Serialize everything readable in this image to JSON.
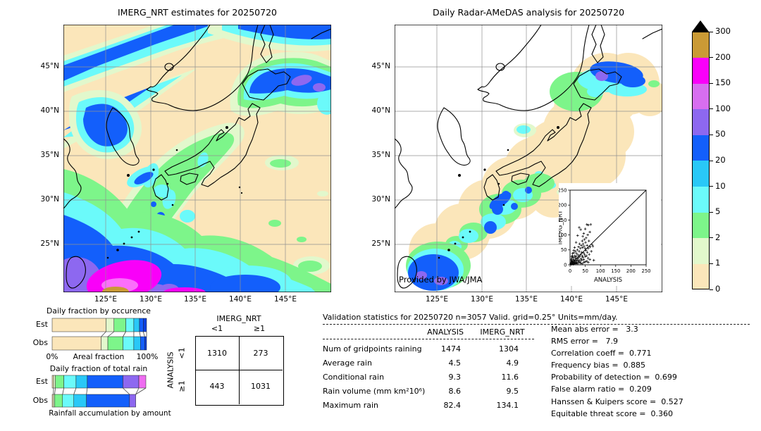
{
  "chart_data": [
    {
      "type": "heatmap",
      "title": "IMERG_NRT estimates for 20250720",
      "x_ticks": [
        "125°E",
        "130°E",
        "135°E",
        "140°E",
        "145°E"
      ],
      "y_ticks": [
        "45°N",
        "40°N",
        "35°N",
        "30°N",
        "25°N"
      ],
      "units": "mm/day",
      "levels": [
        0,
        1,
        2,
        5,
        10,
        20,
        50,
        100,
        150,
        200,
        300
      ],
      "level_colors": [
        "#fbe6ba",
        "#e2f8cc",
        "#7df58a",
        "#6bfafa",
        "#29c8f7",
        "#135ffb",
        "#8d68f0",
        "#d76ef0",
        "#f900f9",
        "#ca9a35"
      ],
      "over_color": "#000000",
      "description": "Satellite daily rainfall estimate over Japan region: heavy NE-SW rain bands in the northwest, heavy rain over Hokkaido, and a tropical system southwest of Okinawa with embedded 150-300 mm maxima."
    },
    {
      "type": "heatmap",
      "title": "Daily Radar-AMeDAS analysis for 20250720",
      "x_ticks": [
        "125°E",
        "130°E",
        "135°E",
        "140°E",
        "145°E"
      ],
      "y_ticks": [
        "45°N",
        "40°N",
        "35°N",
        "30°N",
        "25°N"
      ],
      "units": "mm/day",
      "levels": [
        0,
        1,
        2,
        5,
        10,
        20,
        50,
        100,
        150,
        200,
        300
      ],
      "level_colors": [
        "#fbe6ba",
        "#e2f8cc",
        "#7df58a",
        "#6bfafa",
        "#29c8f7",
        "#135ffb",
        "#8d68f0",
        "#d76ef0",
        "#f900f9",
        "#ca9a35"
      ],
      "over_color": "#000000",
      "credit": "Provided by JWA/JMA",
      "description": "Radar-AMeDAS analysed daily rainfall inside radar coverage along the Japanese archipelago; white is outside coverage; heavy rain over Hokkaido and near Okinawa."
    },
    {
      "type": "bar",
      "title": "Daily fraction by occurence",
      "orientation": "horizontal",
      "categories": [
        "Est",
        "Obs"
      ],
      "xlabel": "Areal fraction",
      "x_min_label": "0%",
      "x_max_label": "100%",
      "segment_colors": [
        "#fbe6ba",
        "#e2f8cc",
        "#7df58a",
        "#6bfafa",
        "#29c8f7",
        "#135ffb",
        "#0b41e0"
      ],
      "series": [
        {
          "name": "Est",
          "segments_pct": [
            57,
            8.5,
            12.5,
            8.5,
            6,
            4,
            3.5
          ]
        },
        {
          "name": "Obs",
          "segments_pct": [
            52,
            7,
            16,
            11.5,
            7,
            4.5,
            2
          ]
        }
      ]
    },
    {
      "type": "bar",
      "title": "Daily fraction of total rain",
      "caption": "Rainfall accumulation by amount",
      "orientation": "horizontal",
      "categories": [
        "Est",
        "Obs"
      ],
      "segment_colors": [
        "#fbe6ba",
        "#e2f8cc",
        "#7df58a",
        "#6bfafa",
        "#29c8f7",
        "#135ffb",
        "#8d68f0",
        "#ee6cf0"
      ],
      "series": [
        {
          "name": "Est",
          "segments_pct": [
            1.5,
            2,
            9,
            13,
            12,
            38,
            17,
            7.5
          ]
        },
        {
          "name": "Obs",
          "segments_pct": [
            1.3,
            1.3,
            8.5,
            12,
            13.5,
            46,
            6.6,
            0
          ]
        }
      ]
    },
    {
      "type": "table",
      "name": "contingency-table",
      "col_title": "IMERG_NRT",
      "row_title": "ANALYSIS",
      "col_labels": [
        "<1",
        "≥1"
      ],
      "row_labels": [
        "<1",
        "≥1"
      ],
      "values": [
        [
          "1310",
          "273"
        ],
        [
          "443",
          "1031"
        ]
      ]
    },
    {
      "type": "table",
      "name": "validation-statistics",
      "title": "Validation statistics for 20250720  n=3057 Valid. grid=0.25° Units=mm/day.",
      "columns": [
        "ANALYSIS",
        "IMERG_NRT"
      ],
      "rows": [
        {
          "label": "Num of gridpoints raining",
          "analysis": "1474",
          "imerg_nrt": "1304"
        },
        {
          "label": "Average rain",
          "analysis": "4.5",
          "imerg_nrt": "4.9"
        },
        {
          "label": "Conditional rain",
          "analysis": "9.3",
          "imerg_nrt": "11.6"
        },
        {
          "label": "Rain volume (mm km²10⁶)",
          "analysis": "8.6",
          "imerg_nrt": "9.5"
        },
        {
          "label": "Maximum rain",
          "analysis": "82.4",
          "imerg_nrt": "134.1"
        }
      ]
    },
    {
      "type": "list",
      "name": "skill-scores",
      "lines": [
        "Mean abs error =   3.3",
        "RMS error =   7.9",
        "Correlation coeff =  0.771",
        "Frequency bias =  0.885",
        "Probability of detection =  0.699",
        "False alarm ratio =  0.209",
        "Hanssen & Kuipers score =  0.527",
        "Equitable threat score =  0.360"
      ]
    },
    {
      "type": "scatter",
      "xlabel": "ANALYSIS",
      "ylabel": "IMERG_NRT",
      "xlim": [
        0,
        250
      ],
      "ylim": [
        0,
        250
      ],
      "tick_step": 50,
      "ref_line": "1:1 diagonal",
      "marker": "+",
      "points": [
        [
          2,
          3
        ],
        [
          3,
          8
        ],
        [
          3,
          18
        ],
        [
          4,
          1
        ],
        [
          5,
          5
        ],
        [
          5,
          14
        ],
        [
          5,
          28
        ],
        [
          6,
          22
        ],
        [
          7,
          3
        ],
        [
          7,
          12
        ],
        [
          8,
          10
        ],
        [
          8,
          30
        ],
        [
          8,
          38
        ],
        [
          9,
          6
        ],
        [
          10,
          2
        ],
        [
          10,
          18
        ],
        [
          11,
          25
        ],
        [
          12,
          8
        ],
        [
          12,
          40
        ],
        [
          12,
          48
        ],
        [
          13,
          5
        ],
        [
          14,
          15
        ],
        [
          15,
          3
        ],
        [
          15,
          30
        ],
        [
          15,
          58
        ],
        [
          16,
          10
        ],
        [
          17,
          22
        ],
        [
          18,
          6
        ],
        [
          18,
          45
        ],
        [
          19,
          12
        ],
        [
          20,
          5
        ],
        [
          20,
          28
        ],
        [
          20,
          75
        ],
        [
          21,
          38
        ],
        [
          22,
          15
        ],
        [
          23,
          8
        ],
        [
          24,
          50
        ],
        [
          25,
          3
        ],
        [
          25,
          20
        ],
        [
          25,
          98
        ],
        [
          26,
          33
        ],
        [
          27,
          12
        ],
        [
          28,
          25
        ],
        [
          28,
          60
        ],
        [
          29,
          8
        ],
        [
          30,
          15
        ],
        [
          30,
          45
        ],
        [
          30,
          125
        ],
        [
          31,
          70
        ],
        [
          32,
          28
        ],
        [
          33,
          10
        ],
        [
          34,
          55
        ],
        [
          35,
          5
        ],
        [
          35,
          35
        ],
        [
          35,
          118
        ],
        [
          36,
          20
        ],
        [
          37,
          65
        ],
        [
          38,
          42
        ],
        [
          39,
          15
        ],
        [
          40,
          3
        ],
        [
          40,
          30
        ],
        [
          40,
          80
        ],
        [
          41,
          58
        ],
        [
          42,
          25
        ],
        [
          42,
          95
        ],
        [
          43,
          70
        ],
        [
          44,
          40
        ],
        [
          45,
          8
        ],
        [
          45,
          18
        ],
        [
          45,
          105
        ],
        [
          46,
          62
        ],
        [
          47,
          85
        ],
        [
          48,
          35
        ],
        [
          49,
          55
        ],
        [
          50,
          10
        ],
        [
          50,
          28
        ],
        [
          50,
          120
        ],
        [
          51,
          75
        ],
        [
          52,
          48
        ],
        [
          53,
          90
        ],
        [
          54,
          30
        ],
        [
          55,
          12
        ],
        [
          55,
          135
        ],
        [
          56,
          65
        ],
        [
          57,
          42
        ],
        [
          58,
          100
        ],
        [
          59,
          22
        ],
        [
          60,
          8
        ],
        [
          60,
          55
        ],
        [
          60,
          133
        ],
        [
          62,
          80
        ],
        [
          63,
          35
        ],
        [
          65,
          18
        ],
        [
          65,
          110
        ],
        [
          66,
          60
        ],
        [
          68,
          135
        ],
        [
          70,
          45
        ],
        [
          72,
          68
        ],
        [
          75,
          62
        ],
        [
          78,
          15
        ]
      ]
    }
  ]
}
